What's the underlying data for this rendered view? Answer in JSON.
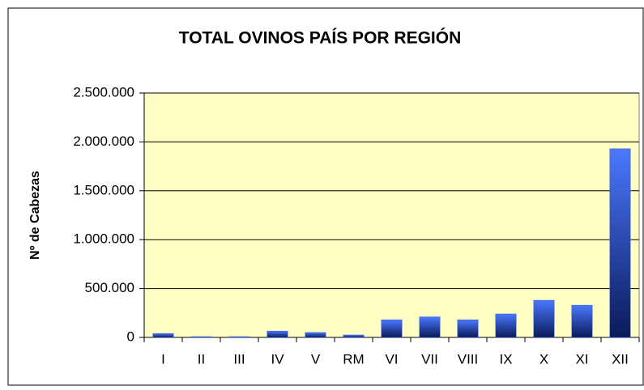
{
  "chart_data": {
    "type": "bar",
    "title": "TOTAL OVINOS PAÍS POR REGIÓN",
    "y_label": "Nº de Cabezas",
    "categories": [
      "I",
      "II",
      "III",
      "IV",
      "V",
      "RM",
      "VI",
      "VII",
      "VIII",
      "IX",
      "X",
      "XI",
      "XII"
    ],
    "values": [
      40000,
      8000,
      8000,
      65000,
      50000,
      25000,
      180000,
      210000,
      180000,
      240000,
      380000,
      330000,
      1930000
    ],
    "color": "#3355dd",
    "ylim": [
      0,
      2500000
    ],
    "yticks": [
      0,
      {
        "value": 500000,
        "label": "500.000"
      },
      {
        "value": 1000000,
        "label": "1.000.000"
      },
      {
        "value": 1500000,
        "label": "1.500.000"
      },
      {
        "value": 2000000,
        "label": "2.000.000"
      },
      {
        "value": 2500000,
        "label": "2.500.000"
      }
    ],
    "grid": true
  }
}
